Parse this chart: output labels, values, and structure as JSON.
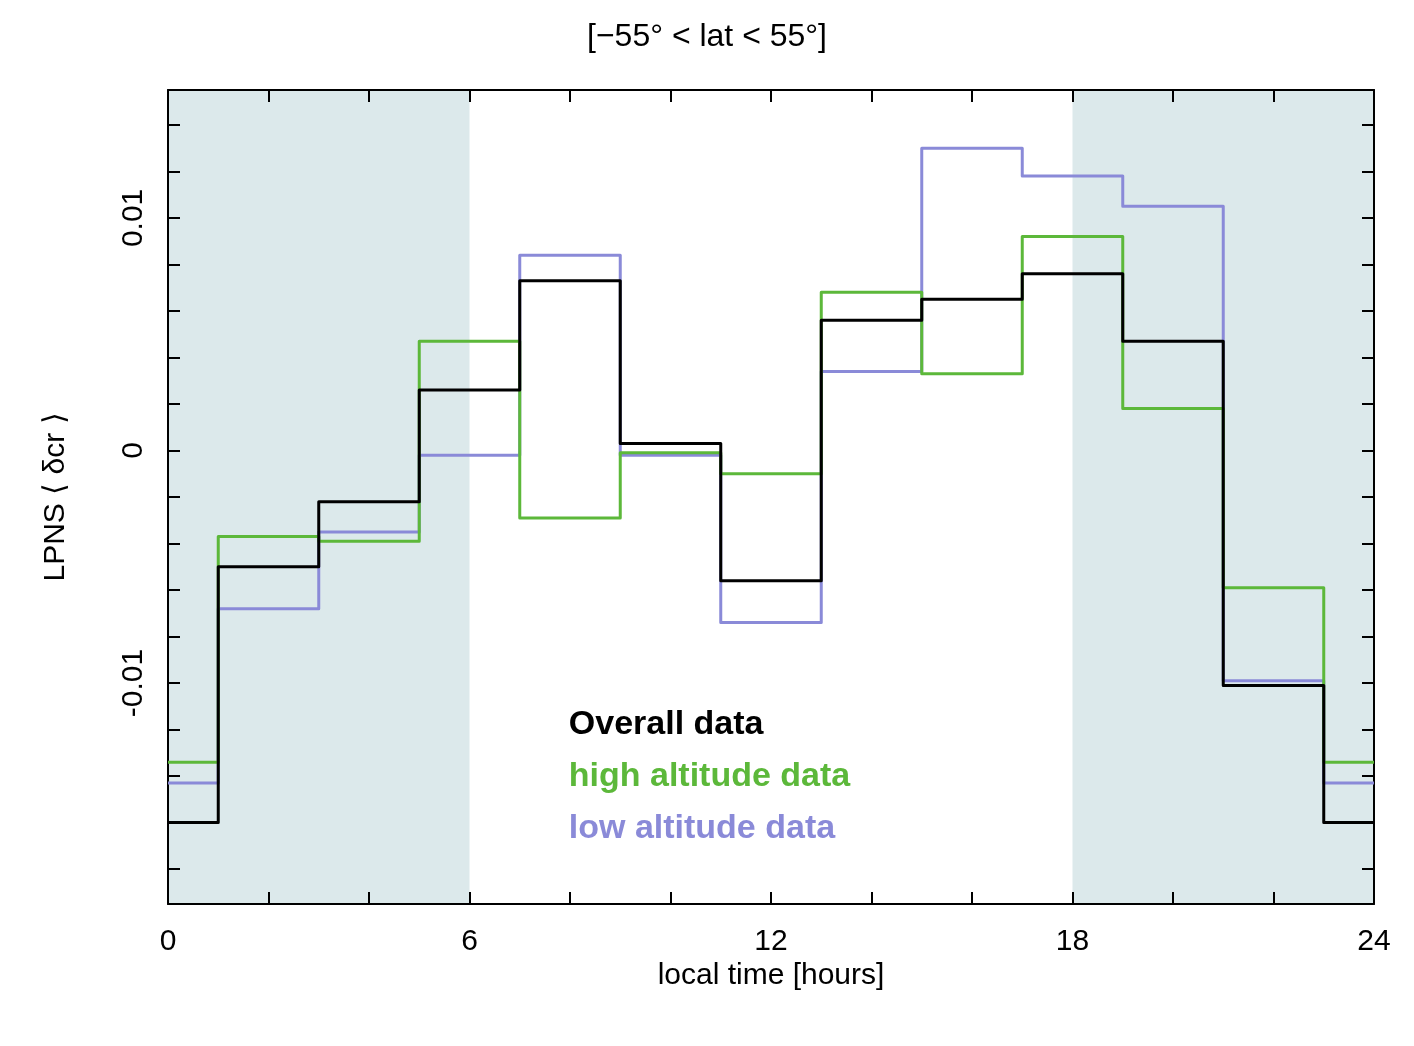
{
  "chart_data": {
    "type": "step",
    "title": "[−55° < lat < 55°]",
    "xlabel": "local time [hours]",
    "ylabel": "LPNS ⟨ δcr ⟩",
    "x": [
      0,
      1,
      3,
      5,
      7,
      9,
      11,
      13,
      15,
      17,
      19,
      21,
      23,
      24
    ],
    "series": [
      {
        "name": "Overall data",
        "color": "#000000",
        "values": [
          -0.016,
          -0.005,
          -0.0022,
          0.0026,
          0.0073,
          0.0003,
          -0.0056,
          0.0056,
          0.0065,
          0.0076,
          0.0047,
          -0.0101,
          -0.016,
          -0.016
        ]
      },
      {
        "name": "high altitude data",
        "color": "#5cb83a",
        "values": [
          -0.0134,
          -0.0037,
          -0.0039,
          0.0047,
          -0.0029,
          -0.0001,
          -0.001,
          0.0068,
          0.0033,
          0.0092,
          0.0018,
          -0.0059,
          -0.0134,
          -0.0134
        ]
      },
      {
        "name": "low altitude data",
        "color": "#8a8ad8",
        "values": [
          -0.0143,
          -0.0068,
          -0.0035,
          -0.0002,
          0.0084,
          -0.0002,
          -0.0074,
          0.0034,
          0.013,
          0.0118,
          0.0105,
          -0.0099,
          -0.0143,
          -0.0143
        ]
      }
    ],
    "xlim": [
      0,
      24
    ],
    "ylim": [
      -0.0195,
      0.0155
    ],
    "xticks": [
      0,
      {
        "value": 2,
        "label": null
      },
      {
        "value": 4,
        "label": null
      },
      6,
      {
        "value": 8,
        "label": null
      },
      {
        "value": 10,
        "label": null
      },
      12,
      {
        "value": 14,
        "label": null
      },
      {
        "value": 16,
        "label": null
      },
      18,
      {
        "value": 20,
        "label": null
      },
      {
        "value": 22,
        "label": null
      },
      24
    ],
    "yticks": [
      {
        "value": -0.018,
        "label": null
      },
      {
        "value": -0.016,
        "label": null
      },
      {
        "value": -0.014,
        "label": null
      },
      {
        "value": -0.012,
        "label": null
      },
      {
        "value": -0.01,
        "label": "-0.01"
      },
      {
        "value": -0.008,
        "label": null
      },
      {
        "value": -0.006,
        "label": null
      },
      {
        "value": -0.004,
        "label": null
      },
      {
        "value": -0.002,
        "label": null
      },
      {
        "value": 0,
        "label": "0"
      },
      {
        "value": 0.002,
        "label": null
      },
      {
        "value": 0.004,
        "label": null
      },
      {
        "value": 0.006,
        "label": null
      },
      {
        "value": 0.008,
        "label": null
      },
      {
        "value": 0.01,
        "label": "0.01"
      },
      {
        "value": 0.012,
        "label": null
      },
      {
        "value": 0.014,
        "label": null
      }
    ],
    "bands": [
      {
        "axis": "x",
        "from": 0,
        "to": 6,
        "color": "#dce9eb"
      },
      {
        "axis": "x",
        "from": 18,
        "to": 24,
        "color": "#dce9eb"
      }
    ],
    "legend": "bottom",
    "grid": false,
    "line_style": "solid",
    "marker": "none"
  }
}
